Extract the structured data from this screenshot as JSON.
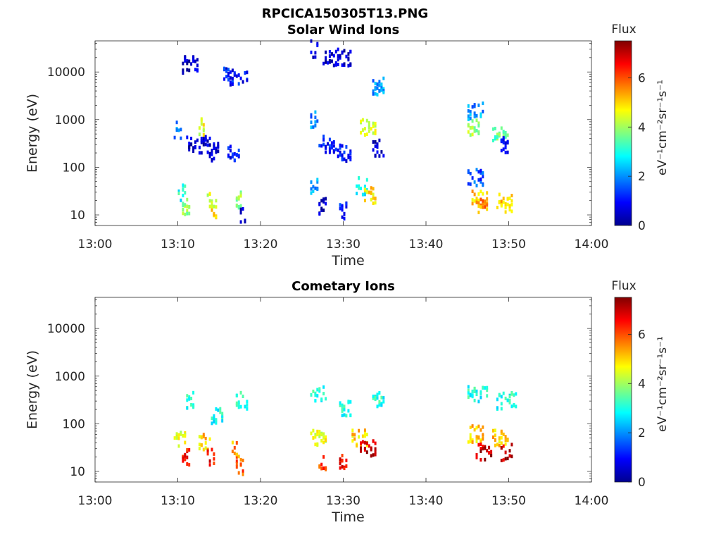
{
  "figure": {
    "title": "RPCICA150305T13.PNG"
  },
  "chart_data": [
    {
      "type": "heatmap",
      "title": "Solar Wind Ions",
      "xlabel": "Time",
      "ylabel": "Energy (eV)",
      "x_ticks": [
        "13:00",
        "13:10",
        "13:20",
        "13:30",
        "13:40",
        "13:50",
        "14:00"
      ],
      "x_range_minutes": [
        0,
        60
      ],
      "y_scale": "log",
      "y_ticks": [
        {
          "value": 10,
          "label": "10"
        },
        {
          "value": 100,
          "label": "100"
        },
        {
          "value": 1000,
          "label": "1000"
        },
        {
          "value": 10000,
          "label": "10000"
        }
      ],
      "y_range": [
        6,
        45000
      ],
      "colorbar": {
        "title": "Flux",
        "label": "eV⁻¹cm⁻²sr⁻¹s⁻¹",
        "range": [
          0,
          7.5
        ],
        "ticks": [
          "0",
          "2",
          "4",
          "6"
        ],
        "colormap": "jet"
      },
      "bursts": [
        {
          "time_window": "13:09:30-13:17:30",
          "rows": [
            {
              "energy_eV": 600,
              "start_min": 9.5,
              "end_min": 10.5,
              "flux": 2
            },
            {
              "energy_eV": 14000,
              "start_min": 10.5,
              "end_min": 12.5,
              "flux": 0.5
            },
            {
              "energy_eV": 700,
              "start_min": 12.5,
              "end_min": 13.2,
              "flux": 4.5
            },
            {
              "energy_eV": 300,
              "start_min": 11.0,
              "end_min": 15.0,
              "flux": 0.5
            },
            {
              "energy_eV": 200,
              "start_min": 13.5,
              "end_min": 15.0,
              "flux": 0.5
            },
            {
              "energy_eV": 8000,
              "start_min": 15.5,
              "end_min": 18.5,
              "flux": 1
            },
            {
              "energy_eV": 200,
              "start_min": 16.0,
              "end_min": 17.5,
              "flux": 1
            },
            {
              "energy_eV": 30,
              "start_min": 10.0,
              "end_min": 11.0,
              "flux": 3
            },
            {
              "energy_eV": 15,
              "start_min": 10.5,
              "end_min": 11.5,
              "flux": 4
            },
            {
              "energy_eV": 20,
              "start_min": 13.5,
              "end_min": 14.8,
              "flux": 4.5
            },
            {
              "energy_eV": 12,
              "start_min": 14.0,
              "end_min": 14.8,
              "flux": 5
            },
            {
              "energy_eV": 20,
              "start_min": 17.0,
              "end_min": 17.8,
              "flux": 4
            },
            {
              "energy_eV": 10,
              "start_min": 17.5,
              "end_min": 18.2,
              "flux": 0.5
            }
          ]
        },
        {
          "time_window": "13:26-13:35",
          "rows": [
            {
              "energy_eV": 30000,
              "start_min": 26.0,
              "end_min": 27.0,
              "flux": 0.5
            },
            {
              "energy_eV": 20000,
              "start_min": 27.5,
              "end_min": 31.0,
              "flux": 0.5
            },
            {
              "energy_eV": 1000,
              "start_min": 26.0,
              "end_min": 27.0,
              "flux": 2
            },
            {
              "energy_eV": 300,
              "start_min": 27.0,
              "end_min": 29.0,
              "flux": 1
            },
            {
              "energy_eV": 200,
              "start_min": 29.0,
              "end_min": 31.0,
              "flux": 1
            },
            {
              "energy_eV": 700,
              "start_min": 32.0,
              "end_min": 34.0,
              "flux": 4.5
            },
            {
              "energy_eV": 250,
              "start_min": 33.5,
              "end_min": 35.0,
              "flux": 0.5
            },
            {
              "energy_eV": 5000,
              "start_min": 33.5,
              "end_min": 35.0,
              "flux": 2
            },
            {
              "energy_eV": 40,
              "start_min": 26.0,
              "end_min": 27.0,
              "flux": 2
            },
            {
              "energy_eV": 15,
              "start_min": 27.0,
              "end_min": 28.0,
              "flux": 0.5
            },
            {
              "energy_eV": 12,
              "start_min": 29.5,
              "end_min": 30.5,
              "flux": 1
            },
            {
              "energy_eV": 40,
              "start_min": 31.5,
              "end_min": 33.0,
              "flux": 3
            },
            {
              "energy_eV": 25,
              "start_min": 32.5,
              "end_min": 34.0,
              "flux": 5
            }
          ]
        },
        {
          "time_window": "13:45-13:51",
          "rows": [
            {
              "energy_eV": 1500,
              "start_min": 45.0,
              "end_min": 47.0,
              "flux": 2
            },
            {
              "energy_eV": 700,
              "start_min": 45.0,
              "end_min": 46.5,
              "flux": 4
            },
            {
              "energy_eV": 500,
              "start_min": 48.0,
              "end_min": 50.0,
              "flux": 3.5
            },
            {
              "energy_eV": 300,
              "start_min": 49.0,
              "end_min": 50.0,
              "flux": 1
            },
            {
              "energy_eV": 60,
              "start_min": 45.0,
              "end_min": 47.0,
              "flux": 1.5
            },
            {
              "energy_eV": 25,
              "start_min": 45.5,
              "end_min": 47.5,
              "flux": 5
            },
            {
              "energy_eV": 15,
              "start_min": 46.0,
              "end_min": 47.5,
              "flux": 5.5
            },
            {
              "energy_eV": 20,
              "start_min": 48.5,
              "end_min": 50.5,
              "flux": 5
            },
            {
              "energy_eV": 12,
              "start_min": 49.5,
              "end_min": 50.5,
              "flux": 4.5
            }
          ]
        }
      ]
    },
    {
      "type": "heatmap",
      "title": "Cometary Ions",
      "xlabel": "Time",
      "ylabel": "Energy (eV)",
      "x_ticks": [
        "13:00",
        "13:10",
        "13:20",
        "13:30",
        "13:40",
        "13:50",
        "14:00"
      ],
      "x_range_minutes": [
        0,
        60
      ],
      "y_scale": "log",
      "y_ticks": [
        {
          "value": 10,
          "label": "10"
        },
        {
          "value": 100,
          "label": "100"
        },
        {
          "value": 1000,
          "label": "1000"
        },
        {
          "value": 10000,
          "label": "10000"
        }
      ],
      "y_range": [
        6,
        45000
      ],
      "colorbar": {
        "title": "Flux",
        "label": "eV⁻¹cm⁻²sr⁻¹s⁻¹",
        "range": [
          0,
          7.5
        ],
        "ticks": [
          "0",
          "2",
          "4",
          "6"
        ],
        "colormap": "jet"
      },
      "bursts": [
        {
          "time_window": "13:09:30-13:18:30",
          "rows": [
            {
              "energy_eV": 300,
              "start_min": 11.0,
              "end_min": 12.0,
              "flux": 3
            },
            {
              "energy_eV": 150,
              "start_min": 14.0,
              "end_min": 15.5,
              "flux": 3
            },
            {
              "energy_eV": 300,
              "start_min": 17.0,
              "end_min": 18.5,
              "flux": 3
            },
            {
              "energy_eV": 50,
              "start_min": 9.5,
              "end_min": 11.0,
              "flux": 4.5
            },
            {
              "energy_eV": 20,
              "start_min": 10.5,
              "end_min": 11.5,
              "flux": 6.5
            },
            {
              "energy_eV": 40,
              "start_min": 12.5,
              "end_min": 14.0,
              "flux": 5
            },
            {
              "energy_eV": 20,
              "start_min": 13.5,
              "end_min": 14.5,
              "flux": 6.5
            },
            {
              "energy_eV": 30,
              "start_min": 16.5,
              "end_min": 17.5,
              "flux": 5.5
            },
            {
              "energy_eV": 12,
              "start_min": 17.0,
              "end_min": 18.0,
              "flux": 6
            }
          ]
        },
        {
          "time_window": "13:26-13:35",
          "rows": [
            {
              "energy_eV": 400,
              "start_min": 26.0,
              "end_min": 28.0,
              "flux": 3
            },
            {
              "energy_eV": 200,
              "start_min": 29.5,
              "end_min": 31.0,
              "flux": 3
            },
            {
              "energy_eV": 300,
              "start_min": 33.5,
              "end_min": 35.0,
              "flux": 3
            },
            {
              "energy_eV": 50,
              "start_min": 26.0,
              "end_min": 28.0,
              "flux": 4.5
            },
            {
              "energy_eV": 15,
              "start_min": 27.0,
              "end_min": 28.0,
              "flux": 6
            },
            {
              "energy_eV": 15,
              "start_min": 29.5,
              "end_min": 30.5,
              "flux": 6.5
            },
            {
              "energy_eV": 50,
              "start_min": 31.0,
              "end_min": 33.0,
              "flux": 5
            },
            {
              "energy_eV": 30,
              "start_min": 32.0,
              "end_min": 34.0,
              "flux": 7
            }
          ]
        },
        {
          "time_window": "13:45-13:51",
          "rows": [
            {
              "energy_eV": 400,
              "start_min": 45.0,
              "end_min": 47.5,
              "flux": 3
            },
            {
              "energy_eV": 300,
              "start_min": 48.5,
              "end_min": 51.0,
              "flux": 3
            },
            {
              "energy_eV": 60,
              "start_min": 45.0,
              "end_min": 47.0,
              "flux": 5
            },
            {
              "energy_eV": 25,
              "start_min": 46.0,
              "end_min": 48.0,
              "flux": 7
            },
            {
              "energy_eV": 50,
              "start_min": 48.0,
              "end_min": 50.0,
              "flux": 5
            },
            {
              "energy_eV": 25,
              "start_min": 49.0,
              "end_min": 50.5,
              "flux": 7
            }
          ]
        }
      ]
    }
  ]
}
